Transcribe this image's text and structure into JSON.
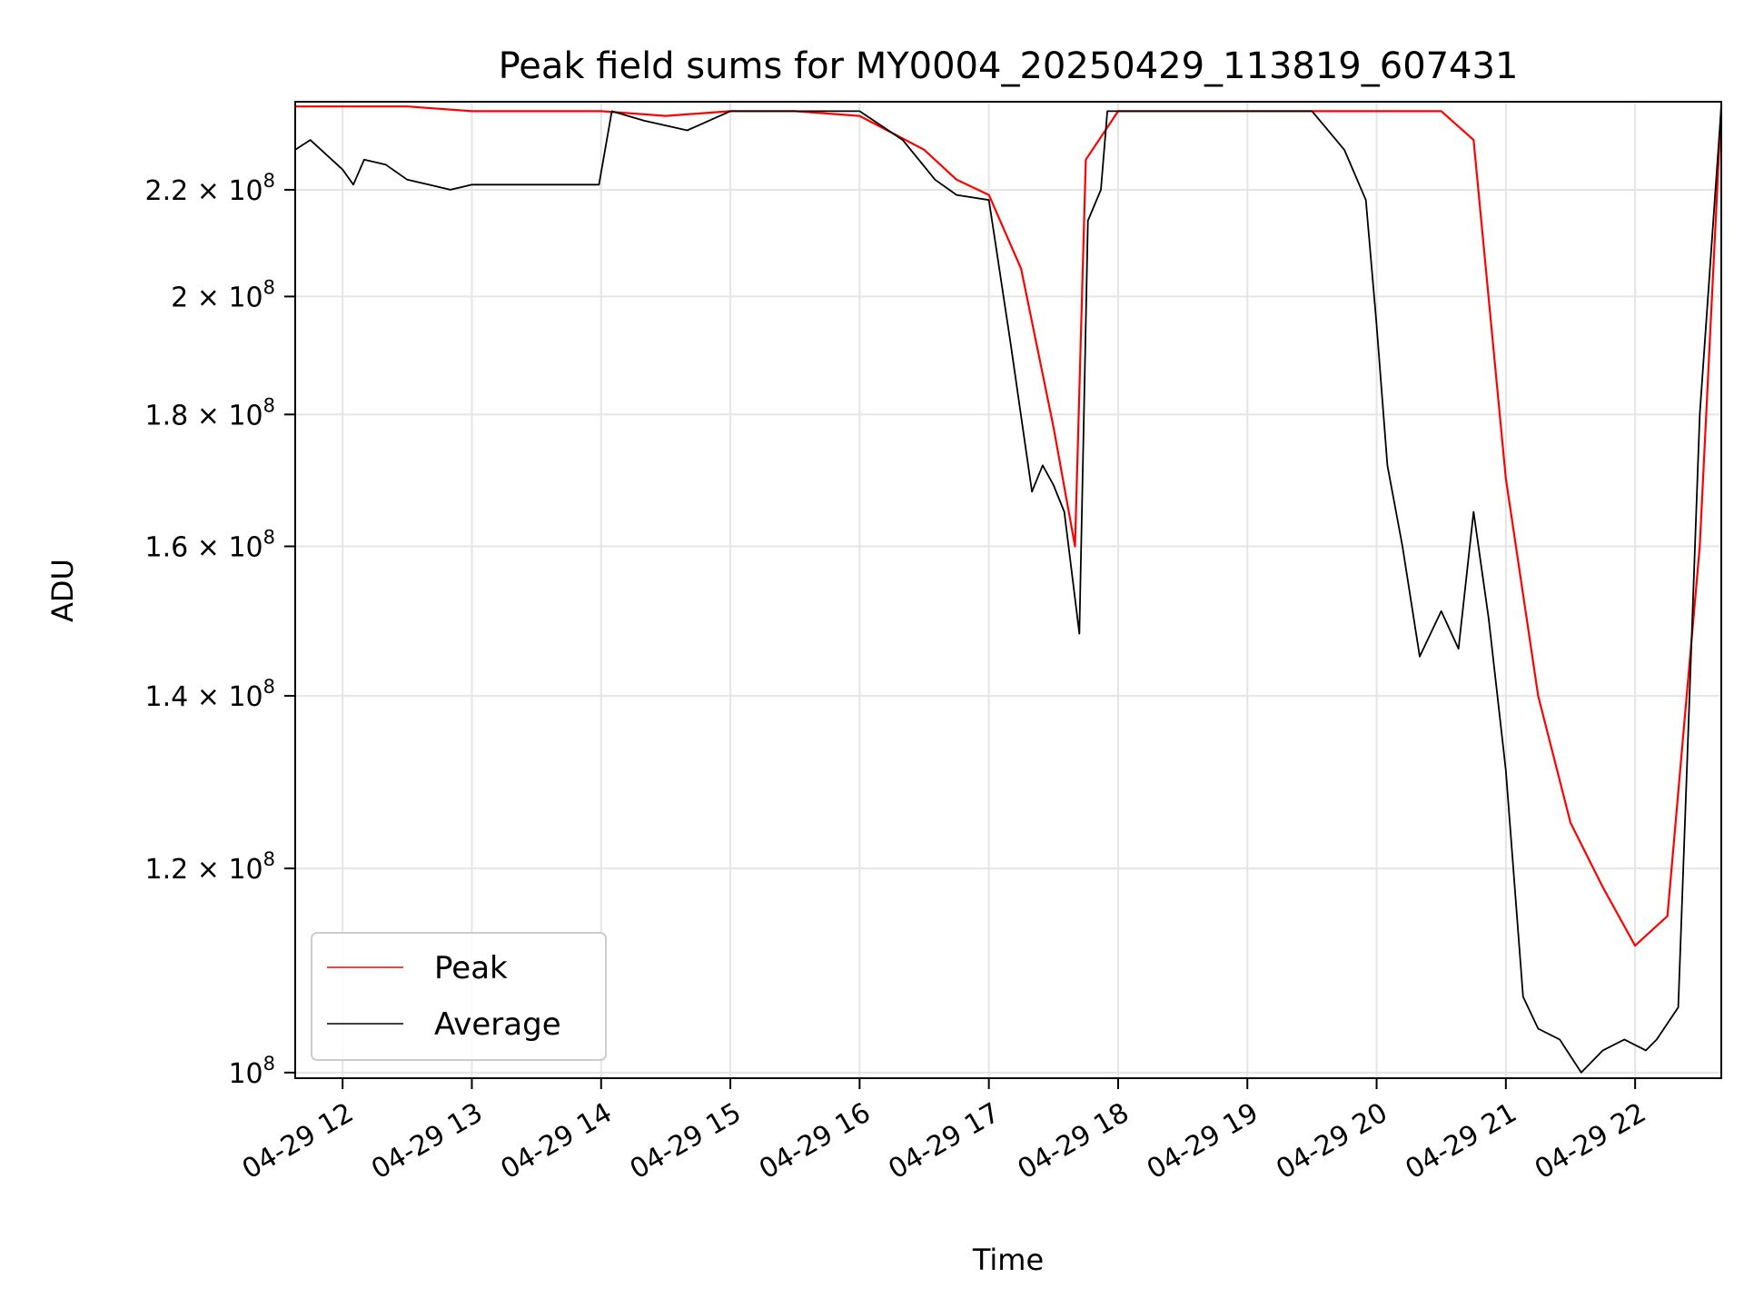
{
  "chart_data": {
    "type": "line",
    "title": "Peak field sums for MY0004_20250429_113819_607431",
    "xlabel": "Time",
    "ylabel": "ADU",
    "y_scale": "log",
    "ylim": [
      99500000,
      238000000
    ],
    "xlim": [
      "04-29 11:38",
      "04-29 22:40"
    ],
    "grid": true,
    "legend_position": "lower-left",
    "x_ticks": [
      "04-29 12",
      "04-29 13",
      "04-29 14",
      "04-29 15",
      "04-29 16",
      "04-29 17",
      "04-29 18",
      "04-29 19",
      "04-29 20",
      "04-29 21",
      "04-29 22"
    ],
    "y_ticks": [
      {
        "value": 100000000,
        "mantissa": "",
        "exponent": "8",
        "base_prefix": "10"
      },
      {
        "value": 120000000,
        "mantissa": "1.2",
        "exponent": "8",
        "base_prefix": "10"
      },
      {
        "value": 140000000,
        "mantissa": "1.4",
        "exponent": "8",
        "base_prefix": "10"
      },
      {
        "value": 160000000,
        "mantissa": "1.6",
        "exponent": "8",
        "base_prefix": "10"
      },
      {
        "value": 180000000,
        "mantissa": "1.8",
        "exponent": "8",
        "base_prefix": "10"
      },
      {
        "value": 200000000,
        "mantissa": "2",
        "exponent": "8",
        "base_prefix": "10"
      },
      {
        "value": 220000000,
        "mantissa": "2.2",
        "exponent": "8",
        "base_prefix": "10"
      }
    ],
    "series": [
      {
        "name": "Peak",
        "color": "#ff0000",
        "x": [
          "04-29 11:38",
          "04-29 12:00",
          "04-29 12:30",
          "04-29 13:00",
          "04-29 13:30",
          "04-29 14:00",
          "04-29 14:30",
          "04-29 15:00",
          "04-29 15:30",
          "04-29 16:00",
          "04-29 16:30",
          "04-29 16:45",
          "04-29 17:00",
          "04-29 17:15",
          "04-29 17:30",
          "04-29 17:40",
          "04-29 17:45",
          "04-29 18:00",
          "04-29 18:30",
          "04-29 19:00",
          "04-29 19:30",
          "04-29 19:45",
          "04-29 20:00",
          "04-29 20:15",
          "04-29 20:30",
          "04-29 20:45",
          "04-29 21:00",
          "04-29 21:15",
          "04-29 21:30",
          "04-29 21:45",
          "04-29 22:00",
          "04-29 22:15",
          "04-29 22:30",
          "04-29 22:40"
        ],
        "y": [
          237000000,
          237000000,
          237000000,
          236000000,
          236000000,
          236000000,
          235000000,
          236000000,
          236000000,
          235000000,
          228000000,
          222000000,
          219000000,
          205000000,
          178000000,
          160000000,
          226000000,
          236000000,
          236000000,
          236000000,
          236000000,
          236000000,
          236000000,
          236000000,
          236000000,
          230000000,
          170000000,
          140000000,
          125000000,
          118000000,
          112000000,
          115000000,
          160000000,
          237000000
        ]
      },
      {
        "name": "Average",
        "color": "#000000",
        "x": [
          "04-29 11:38",
          "04-29 11:45",
          "04-29 12:00",
          "04-29 12:05",
          "04-29 12:10",
          "04-29 12:20",
          "04-29 12:30",
          "04-29 12:40",
          "04-29 12:50",
          "04-29 13:00",
          "04-29 13:30",
          "04-29 13:59",
          "04-29 14:05",
          "04-29 14:20",
          "04-29 14:40",
          "04-29 15:00",
          "04-29 15:30",
          "04-29 16:00",
          "04-29 16:20",
          "04-29 16:35",
          "04-29 16:45",
          "04-29 17:00",
          "04-29 17:10",
          "04-29 17:20",
          "04-29 17:25",
          "04-29 17:30",
          "04-29 17:35",
          "04-29 17:42",
          "04-29 17:46",
          "04-29 17:52",
          "04-29 17:55",
          "04-29 18:00",
          "04-29 18:30",
          "04-29 19:00",
          "04-29 19:30",
          "04-29 19:45",
          "04-29 19:55",
          "04-29 20:00",
          "04-29 20:05",
          "04-29 20:12",
          "04-29 20:20",
          "04-29 20:30",
          "04-29 20:38",
          "04-29 20:45",
          "04-29 20:52",
          "04-29 21:00",
          "04-29 21:08",
          "04-29 21:15",
          "04-29 21:25",
          "04-29 21:35",
          "04-29 21:45",
          "04-29 21:55",
          "04-29 22:05",
          "04-29 22:10",
          "04-29 22:20",
          "04-29 22:30",
          "04-29 22:40"
        ],
        "y": [
          228000000,
          230000000,
          224000000,
          221000000,
          226000000,
          225000000,
          222000000,
          221000000,
          220000000,
          221000000,
          221000000,
          221000000,
          236000000,
          234000000,
          232000000,
          236000000,
          236000000,
          236000000,
          230000000,
          222000000,
          219000000,
          218000000,
          192000000,
          168000000,
          172000000,
          169000000,
          165000000,
          148000000,
          214000000,
          220000000,
          236000000,
          236000000,
          236000000,
          236000000,
          236000000,
          228000000,
          218000000,
          195000000,
          172000000,
          160000000,
          145000000,
          151000000,
          146000000,
          165000000,
          150000000,
          131000000,
          107000000,
          104000000,
          103000000,
          100000000,
          102000000,
          103000000,
          102000000,
          103000000,
          106000000,
          180000000,
          237000000
        ]
      }
    ]
  }
}
